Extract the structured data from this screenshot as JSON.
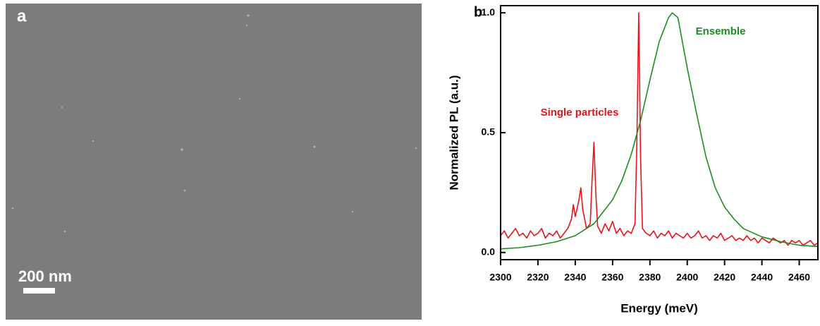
{
  "panel_a": {
    "label": "a",
    "scale_bar": "200 nm"
  },
  "chart_data": {
    "type": "line",
    "label": "b",
    "xlabel": "Energy (meV)",
    "ylabel": "Normalized PL (a.u.)",
    "xlim": [
      2300,
      2470
    ],
    "xticks": [
      2300,
      2320,
      2340,
      2360,
      2380,
      2400,
      2420,
      2440,
      2460
    ],
    "ylim": [
      -0.03,
      1.03
    ],
    "yticks": [
      {
        "value": 0,
        "label": "0.0"
      },
      0.5,
      {
        "value": 1,
        "label": "1.0"
      }
    ],
    "annotations": [
      {
        "text": "Single particles",
        "color": "#e8141b"
      },
      {
        "text": "Ensemble",
        "color": "#1e8c1e"
      }
    ],
    "series": [
      {
        "color": "#e8141b",
        "x": [
          2300,
          2302,
          2304,
          2306,
          2308,
          2310,
          2312,
          2314,
          2316,
          2318,
          2320,
          2322,
          2324,
          2326,
          2328,
          2330,
          2332,
          2334,
          2336,
          2338,
          2339,
          2340,
          2342,
          2343,
          2344,
          2346,
          2348,
          2349,
          2350,
          2351,
          2352,
          2354,
          2356,
          2358,
          2360,
          2362,
          2364,
          2366,
          2368,
          2370,
          2372,
          2373,
          2374,
          2375,
          2376,
          2378,
          2380,
          2382,
          2384,
          2386,
          2388,
          2390,
          2392,
          2394,
          2396,
          2398,
          2400,
          2402,
          2404,
          2406,
          2408,
          2410,
          2412,
          2414,
          2416,
          2418,
          2420,
          2422,
          2424,
          2426,
          2428,
          2430,
          2432,
          2434,
          2436,
          2438,
          2440,
          2442,
          2444,
          2446,
          2448,
          2450,
          2452,
          2454,
          2456,
          2458,
          2460,
          2462,
          2464,
          2466,
          2468,
          2470
        ],
        "values": [
          0.07,
          0.09,
          0.06,
          0.08,
          0.1,
          0.07,
          0.08,
          0.06,
          0.09,
          0.07,
          0.08,
          0.1,
          0.06,
          0.08,
          0.07,
          0.09,
          0.06,
          0.08,
          0.1,
          0.14,
          0.2,
          0.15,
          0.22,
          0.27,
          0.18,
          0.1,
          0.12,
          0.3,
          0.46,
          0.25,
          0.11,
          0.08,
          0.12,
          0.09,
          0.13,
          0.08,
          0.1,
          0.07,
          0.09,
          0.08,
          0.12,
          0.45,
          1.0,
          0.4,
          0.1,
          0.08,
          0.07,
          0.09,
          0.06,
          0.08,
          0.07,
          0.09,
          0.06,
          0.08,
          0.07,
          0.06,
          0.08,
          0.06,
          0.07,
          0.09,
          0.06,
          0.07,
          0.05,
          0.07,
          0.06,
          0.08,
          0.05,
          0.06,
          0.07,
          0.05,
          0.06,
          0.05,
          0.07,
          0.05,
          0.06,
          0.04,
          0.06,
          0.05,
          0.04,
          0.06,
          0.05,
          0.04,
          0.05,
          0.03,
          0.05,
          0.04,
          0.05,
          0.03,
          0.04,
          0.05,
          0.03,
          0.04
        ]
      },
      {
        "color": "#1e8c1e",
        "x": [
          2300,
          2310,
          2320,
          2330,
          2340,
          2350,
          2360,
          2365,
          2370,
          2375,
          2380,
          2385,
          2390,
          2392,
          2395,
          2400,
          2405,
          2410,
          2415,
          2420,
          2425,
          2430,
          2440,
          2450,
          2460,
          2470
        ],
        "values": [
          0.015,
          0.02,
          0.03,
          0.045,
          0.07,
          0.12,
          0.22,
          0.3,
          0.41,
          0.55,
          0.72,
          0.88,
          0.98,
          1.0,
          0.98,
          0.77,
          0.58,
          0.4,
          0.27,
          0.19,
          0.14,
          0.1,
          0.065,
          0.045,
          0.03,
          0.025
        ]
      }
    ]
  }
}
